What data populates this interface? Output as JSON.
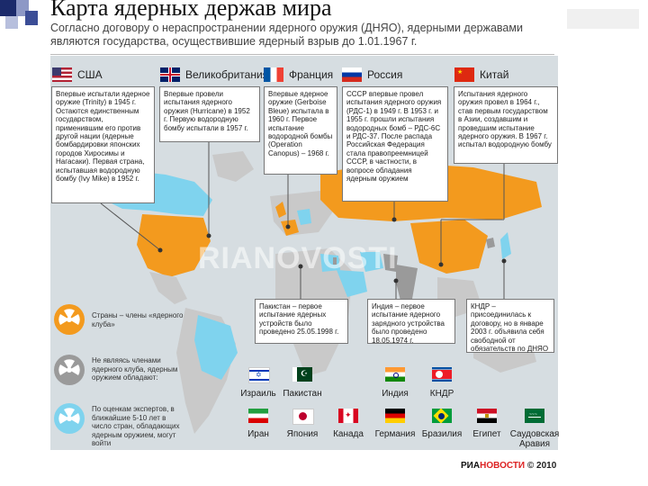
{
  "page": {
    "title": "Карта ядерных держав мира",
    "subtitle": "Согласно договору о нераспространении ядерного оружия (ДНЯО), ядерными державами являются государства, осуществившие ядерный взрыв до 1.01.1967 г."
  },
  "colors": {
    "nuclear_club": "#f39a1e",
    "non_member": "#9a9a9a",
    "suspected": "#7fd3ee",
    "ocean": "#d6dde1"
  },
  "club_countries": [
    {
      "name": "США",
      "flag": "usa-flag",
      "text": "Впервые испытали ядерное оружие (Trinity) в 1945 г. Остаются единственным государством, применившим его против другой нации (ядерные бомбардировки японских городов Хиросимы и Нагасаки). Первая страна, испытавшая водородную бомбу (Ivy Mike) в 1952 г."
    },
    {
      "name": "Великобритания",
      "flag": "uk-flag",
      "text": "Впервые провели испытания ядерного оружия (Hurricane) в 1952 г. Первую водородную бомбу испытали в 1957 г."
    },
    {
      "name": "Франция",
      "flag": "france-flag",
      "text": "Впервые ядерное оружие (Gerboise Bleue) испытала в 1960 г. Первое испытание водородной бомбы (Operation Canopus) – 1968 г."
    },
    {
      "name": "Россия",
      "flag": "russia-flag",
      "text": "СССР впервые провел испытания ядерного оружия (РДС-1) в 1949 г. В 1953 г. и 1955 г. прошли испытания водородных бомб – РДС-6С и РДС-37. После распада Российская Федерация стала правопреемницей СССР, в частности, в вопросе обладания ядерным оружием"
    },
    {
      "name": "Китай",
      "flag": "china-flag",
      "text": "Испытания ядерного оружия провел в 1964 г., став первым государством в Азии, создавшим и проведшим испытание ядерного оружия. В 1967 г. испытал водородную бомбу"
    }
  ],
  "mid_notes": [
    {
      "id": "pakistan",
      "text": "Пакистан – первое испытание ядерных устройств было проведено 25.05.1998 г."
    },
    {
      "id": "india",
      "text": "Индия – первое испытание ядерного зарядного устройства было проведено 18.05.1974 г."
    },
    {
      "id": "dprk",
      "text": "КНДР – присоединилась к договору, но в январе 2003 г. объявила себя свободной от обязательств по ДНЯО"
    }
  ],
  "legend": [
    {
      "icon": "radiation-orange-icon",
      "text": "Страны – члены «ядерного клуба»"
    },
    {
      "icon": "radiation-gray-icon",
      "text": "Не являясь членами ядерного клуба, ядерным оружием обладают:"
    },
    {
      "icon": "radiation-blue-icon",
      "text": "По оценкам экспертов, в ближайшие 5-10 лет в число стран, обладающих ядерным оружием, могут войти"
    }
  ],
  "non_members": [
    {
      "name": "Израиль",
      "flag": "israel-flag"
    },
    {
      "name": "Пакистан",
      "flag": "pakistan-flag"
    },
    {
      "name": "Индия",
      "flag": "india-flag"
    },
    {
      "name": "КНДР",
      "flag": "dprk-flag"
    }
  ],
  "potential": [
    {
      "name": "Иран",
      "flag": "iran-flag"
    },
    {
      "name": "Япония",
      "flag": "japan-flag"
    },
    {
      "name": "Канада",
      "flag": "canada-flag"
    },
    {
      "name": "Германия",
      "flag": "germany-flag"
    },
    {
      "name": "Бразилия",
      "flag": "brazil-flag"
    },
    {
      "name": "Египет",
      "flag": "egypt-flag"
    },
    {
      "name": "Саудовская Аравия",
      "flag": "saudi-flag"
    }
  ],
  "watermark": "RIANOVOSTI",
  "credit": {
    "ria": "РИА",
    "novosti": "НОВОСТИ",
    "year": "© 2010"
  }
}
